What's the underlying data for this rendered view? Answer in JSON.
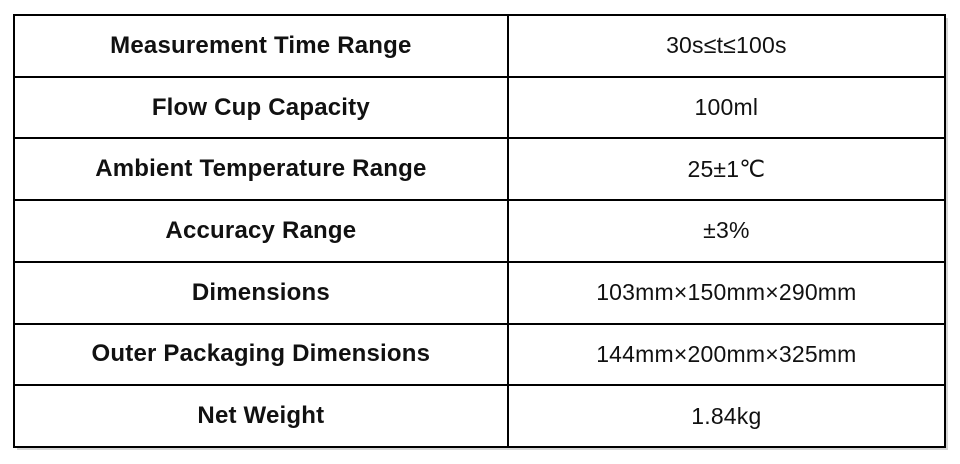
{
  "table": {
    "background": "#ffffff",
    "border_color": "#000000",
    "text_color": "#111111",
    "rows": [
      {
        "label": "Measurement Time Range",
        "value": "30s≤t≤100s"
      },
      {
        "label": "Flow Cup Capacity",
        "value": "100ml"
      },
      {
        "label": "Ambient Temperature Range",
        "value": "25±1℃"
      },
      {
        "label": "Accuracy Range",
        "value": "±3%"
      },
      {
        "label": "Dimensions",
        "value": "103mm×150mm×290mm"
      },
      {
        "label": "Outer Packaging Dimensions",
        "value": "144mm×200mm×325mm"
      },
      {
        "label": "Net Weight",
        "value": "1.84kg"
      }
    ]
  }
}
